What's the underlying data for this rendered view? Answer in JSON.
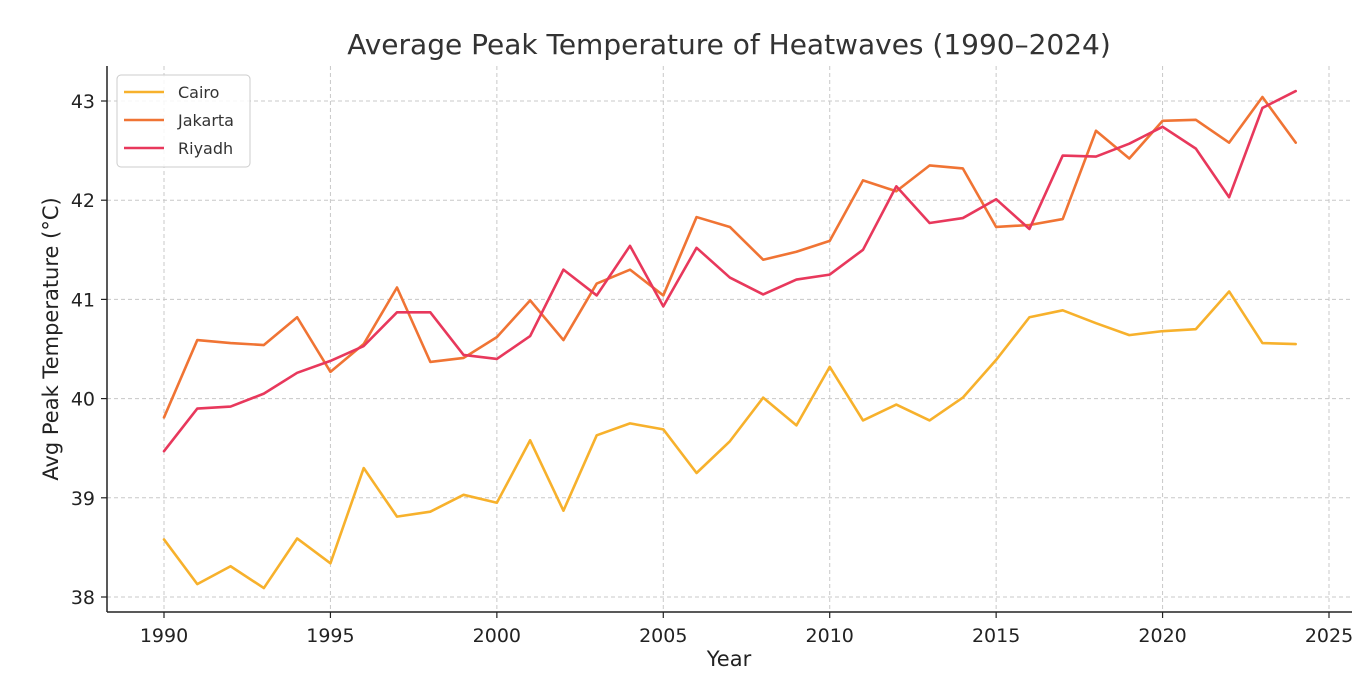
{
  "chart_data": {
    "type": "line",
    "title": "Average Peak Temperature of Heatwaves (1990–2024)",
    "xlabel": "Year",
    "ylabel": "Avg Peak Temperature (°C)",
    "xlim": [
      1988.3,
      1990.0
    ],
    "ylim": [
      37.85,
      43.35
    ],
    "xticks": [
      1990,
      1995,
      2000,
      2005,
      2010,
      2015,
      2020,
      2025
    ],
    "yticks": [
      38,
      39,
      40,
      41,
      42,
      43
    ],
    "grid": true,
    "legend_position": "top-left",
    "x": [
      1990,
      1991,
      1992,
      1993,
      1994,
      1995,
      1996,
      1997,
      1998,
      1999,
      2000,
      2001,
      2002,
      2003,
      2004,
      2005,
      2006,
      2007,
      2008,
      2009,
      2010,
      2011,
      2012,
      2013,
      2014,
      2015,
      2016,
      2017,
      2018,
      2019,
      2020,
      2021,
      2022,
      2023,
      2024
    ],
    "series": [
      {
        "name": "Cairo",
        "color": "#f7b12c",
        "values": [
          38.58,
          38.13,
          38.31,
          38.09,
          38.59,
          38.34,
          39.3,
          38.81,
          38.86,
          39.03,
          38.95,
          39.58,
          38.87,
          39.63,
          39.75,
          39.69,
          39.25,
          39.57,
          40.01,
          39.73,
          40.32,
          39.78,
          39.94,
          39.78,
          40.01,
          40.39,
          40.82,
          40.89,
          40.76,
          40.64,
          40.68,
          40.7,
          41.08,
          40.56,
          40.55
        ]
      },
      {
        "name": "Jakarta",
        "color": "#f07434",
        "values": [
          39.81,
          40.59,
          40.56,
          40.54,
          40.82,
          40.27,
          40.55,
          41.12,
          40.37,
          40.41,
          40.62,
          40.99,
          40.59,
          41.16,
          41.3,
          41.04,
          41.83,
          41.73,
          41.4,
          41.48,
          41.59,
          42.2,
          42.09,
          42.35,
          42.32,
          41.73,
          41.75,
          41.81,
          42.7,
          42.42,
          42.8,
          42.81,
          42.58,
          43.04,
          42.58
        ]
      },
      {
        "name": "Riyadh",
        "color": "#e8385c",
        "values": [
          39.47,
          39.9,
          39.92,
          40.05,
          40.26,
          40.38,
          40.53,
          40.87,
          40.87,
          40.44,
          40.4,
          40.63,
          41.3,
          41.04,
          41.54,
          40.93,
          41.52,
          41.22,
          41.05,
          41.2,
          41.25,
          41.5,
          42.14,
          41.77,
          41.82,
          42.01,
          41.71,
          42.45,
          42.44,
          42.57,
          42.74,
          42.52,
          42.03,
          42.93,
          43.1
        ]
      }
    ]
  }
}
